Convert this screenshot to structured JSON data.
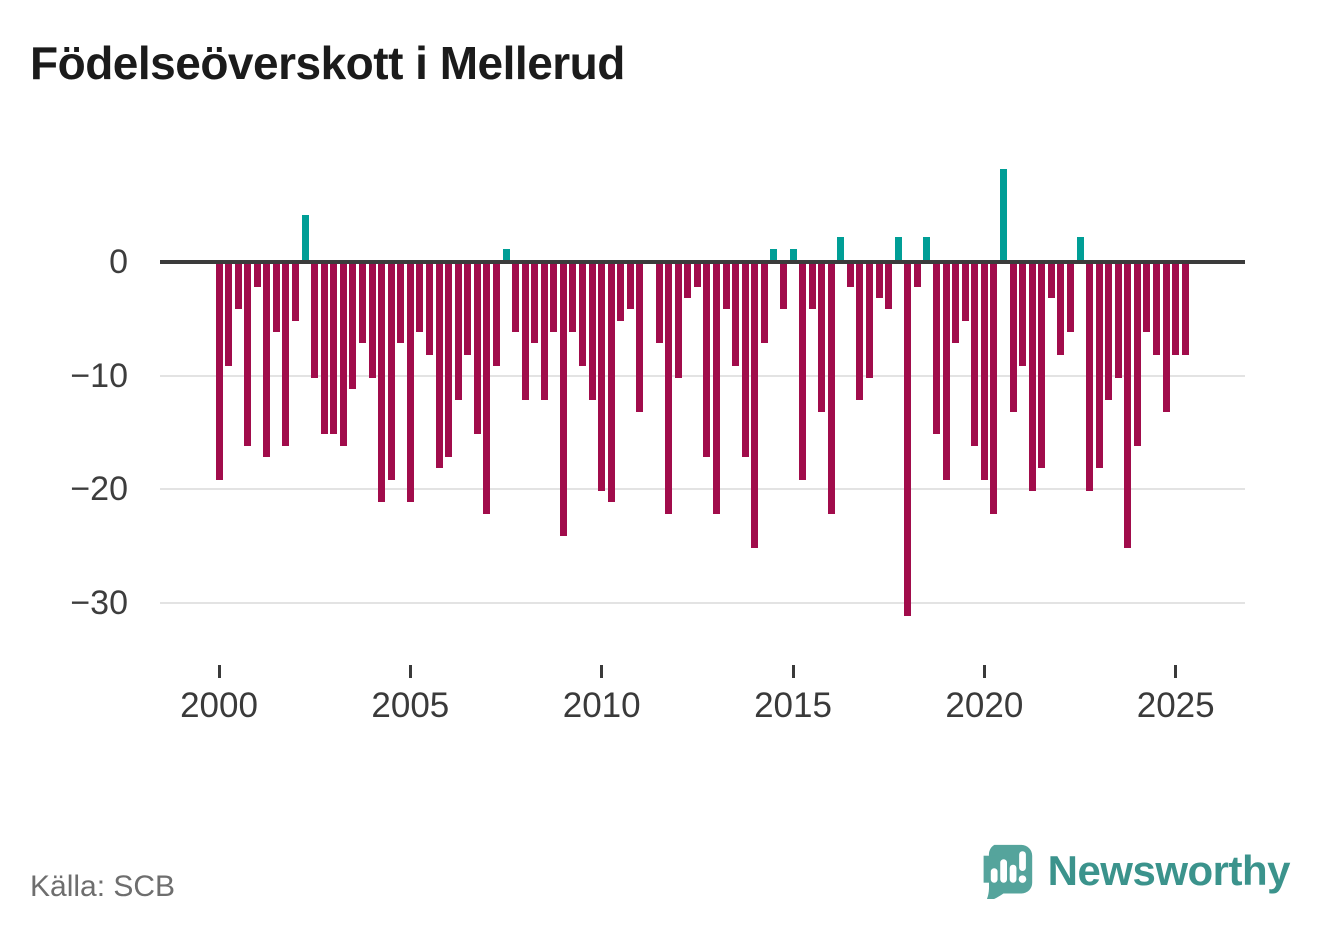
{
  "header": {
    "title": "Födelseöverskott i Mellerud"
  },
  "footer": {
    "source_label": "Källa: SCB",
    "brand": {
      "name": "Newsworthy",
      "icon": "newsworthy-speech-bubble-chart-icon"
    }
  },
  "chart_data": {
    "type": "bar",
    "title": "Födelseöverskott i Mellerud",
    "frequency": "quarterly",
    "start_period": "2000Q1",
    "end_period": "2025Q2",
    "values": [
      -19,
      -9,
      -4,
      -16,
      -2,
      -17,
      -6,
      -16,
      -5,
      4,
      -10,
      -15,
      -15,
      -16,
      -11,
      -7,
      -10,
      -21,
      -19,
      -7,
      -21,
      -6,
      -8,
      -18,
      -17,
      -12,
      -8,
      -15,
      -22,
      -9,
      1,
      -6,
      -12,
      -7,
      -12,
      -6,
      -24,
      -6,
      -9,
      -12,
      -20,
      -21,
      -5,
      -4,
      -13,
      0,
      -7,
      -22,
      -10,
      -3,
      -2,
      -17,
      -22,
      -4,
      -9,
      -17,
      -25,
      -7,
      1,
      -4,
      1,
      -19,
      -4,
      -13,
      -22,
      2,
      -2,
      -12,
      -10,
      -3,
      -4,
      2,
      -31,
      -2,
      2,
      -15,
      -19,
      -7,
      -5,
      -16,
      -19,
      -22,
      8,
      -13,
      -9,
      -20,
      -18,
      -3,
      -8,
      -6,
      2,
      -20,
      -18,
      -12,
      -10,
      -25,
      -16,
      -6,
      -8,
      -13,
      -8,
      -8
    ],
    "x_tick_labels": [
      "2000",
      "2005",
      "2010",
      "2015",
      "2020",
      "2025"
    ],
    "y_ticks": [
      0,
      -10,
      -20,
      -30
    ],
    "y_tick_labels": [
      "0",
      "−10",
      "−20",
      "−30"
    ],
    "ylim": [
      -33,
      9
    ],
    "grid": "horizontal",
    "legend": "none",
    "colors": {
      "negative_bar": "#a10c4b",
      "positive_bar": "#009e96"
    }
  }
}
